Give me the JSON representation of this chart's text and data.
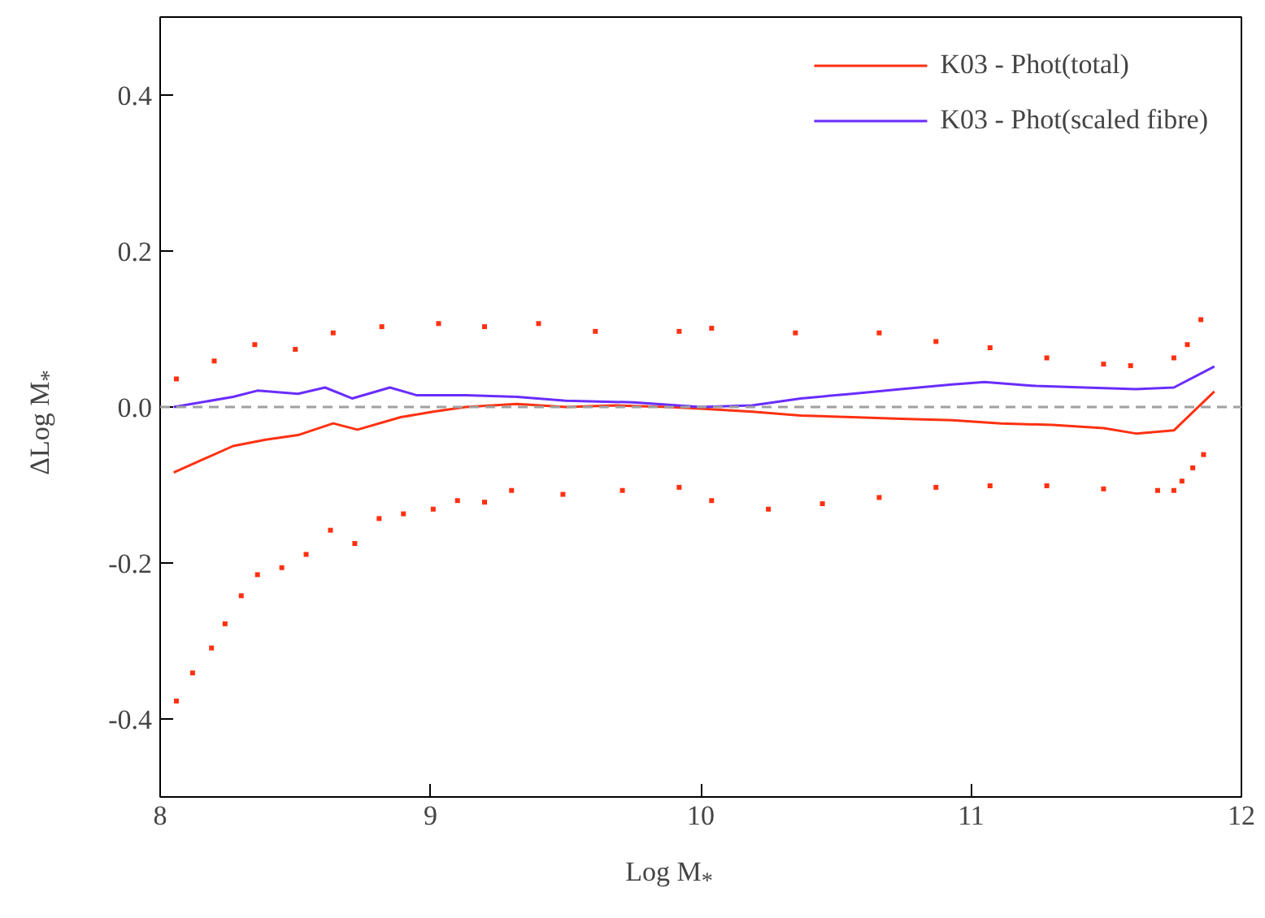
{
  "chart_data": {
    "type": "line",
    "xlabel": "Log M$_{*}$",
    "ylabel": "ΔLog M$_{*}$",
    "xlim": [
      8,
      12
    ],
    "ylim": [
      -0.5,
      0.5
    ],
    "xticks": [
      8,
      9,
      10,
      11,
      12
    ],
    "yticks": [
      -0.4,
      -0.2,
      {
        "value": 0,
        "label": "0.0"
      },
      0.2,
      0.4
    ],
    "legend": "top right",
    "grid": false,
    "ref_lines": [
      {
        "axis": "y",
        "value": 0,
        "color": "#a0a0a0",
        "line_style": "dashed"
      }
    ],
    "series": [
      {
        "name": "K03 - Phot(total)",
        "color": "#ff3010",
        "x": [
          8.05,
          8.27,
          8.39,
          8.51,
          8.64,
          8.73,
          8.89,
          9.01,
          9.13,
          9.32,
          9.5,
          9.69,
          9.88,
          10.0,
          10.19,
          10.37,
          10.56,
          10.74,
          10.93,
          11.11,
          11.3,
          11.49,
          11.61,
          11.75,
          11.9
        ],
        "values": [
          -0.084,
          -0.05,
          -0.042,
          -0.036,
          -0.021,
          -0.029,
          -0.013,
          -0.006,
          0.0,
          0.004,
          0.0,
          0.002,
          0.0,
          -0.002,
          -0.006,
          -0.011,
          -0.013,
          -0.015,
          -0.017,
          -0.021,
          -0.023,
          -0.027,
          -0.034,
          -0.03,
          0.02
        ]
      },
      {
        "name": "K03 - Phot(scaled fibre)",
        "color": "#6a2cff",
        "x": [
          8.05,
          8.27,
          8.36,
          8.51,
          8.61,
          8.71,
          8.85,
          8.95,
          9.13,
          9.32,
          9.5,
          9.75,
          10.0,
          10.19,
          10.37,
          10.56,
          10.74,
          10.93,
          11.05,
          11.24,
          11.42,
          11.61,
          11.75,
          11.9
        ],
        "values": [
          0.0,
          0.013,
          0.021,
          0.017,
          0.025,
          0.011,
          0.025,
          0.015,
          0.015,
          0.013,
          0.008,
          0.006,
          0.0,
          0.002,
          0.011,
          0.017,
          0.023,
          0.029,
          0.032,
          0.027,
          0.025,
          0.023,
          0.025,
          0.052
        ]
      },
      {
        "type": "scatter",
        "marker": "square",
        "color": "#ff3010",
        "x": [
          8.06,
          8.2,
          8.35,
          8.5,
          8.64,
          8.82,
          9.03,
          9.2,
          9.4,
          9.61,
          9.92,
          10.04,
          10.35,
          10.66,
          10.87,
          11.07,
          11.28,
          11.49,
          11.59,
          11.75,
          11.8,
          11.85
        ],
        "values": [
          0.036,
          0.059,
          0.08,
          0.074,
          0.095,
          0.103,
          0.107,
          0.103,
          0.107,
          0.097,
          0.097,
          0.101,
          0.095,
          0.095,
          0.084,
          0.076,
          0.063,
          0.055,
          0.053,
          0.063,
          0.08,
          0.112
        ]
      },
      {
        "type": "scatter",
        "marker": "square",
        "color": "#ff3010",
        "x": [
          8.06,
          8.12,
          8.19,
          8.24,
          8.3,
          8.36,
          8.45,
          8.54,
          8.63,
          8.72,
          8.81,
          8.9,
          9.01,
          9.1,
          9.2,
          9.3,
          9.49,
          9.71,
          9.92,
          10.04,
          10.25,
          10.45,
          10.66,
          10.87,
          11.07,
          11.28,
          11.49,
          11.69,
          11.75,
          11.78,
          11.82,
          11.86
        ],
        "values": [
          -0.377,
          -0.341,
          -0.309,
          -0.278,
          -0.242,
          -0.215,
          -0.206,
          -0.189,
          -0.158,
          -0.175,
          -0.143,
          -0.137,
          -0.131,
          -0.12,
          -0.122,
          -0.107,
          -0.112,
          -0.107,
          -0.103,
          -0.12,
          -0.131,
          -0.124,
          -0.116,
          -0.103,
          -0.101,
          -0.101,
          -0.105,
          -0.107,
          -0.107,
          -0.095,
          -0.078,
          -0.061
        ]
      }
    ]
  }
}
